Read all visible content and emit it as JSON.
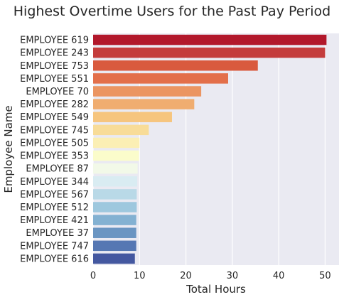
{
  "chart_data": {
    "type": "bar",
    "orientation": "horizontal",
    "title": "Highest Overtime Users for the Past Pay Period",
    "xlabel": "Total Hours",
    "ylabel": "Employee Name",
    "xlim": [
      0,
      53
    ],
    "xticks": [
      0,
      10,
      20,
      30,
      40,
      50
    ],
    "grid": true,
    "categories": [
      "EMPLOYEE 619",
      "EMPLOYEE 243",
      "EMPLOYEE 753",
      "EMPLOYEE 551",
      "EMPLOYEE 70",
      "EMPLOYEE 282",
      "EMPLOYEE 549",
      "EMPLOYEE 745",
      "EMPLOYEE 505",
      "EMPLOYEE 353",
      "EMPLOYEE 87",
      "EMPLOYEE 344",
      "EMPLOYEE 567",
      "EMPLOYEE 512",
      "EMPLOYEE 421",
      "EMPLOYEE 37",
      "EMPLOYEE 747",
      "EMPLOYEE 616"
    ],
    "values": [
      50.3,
      50.0,
      35.5,
      29.1,
      23.3,
      21.8,
      17.0,
      12.0,
      10.0,
      9.9,
      9.6,
      9.5,
      9.4,
      9.4,
      9.3,
      9.3,
      9.3,
      9.0
    ],
    "colors": [
      "#b2182b",
      "#c43c3c",
      "#d95a3e",
      "#e36f4a",
      "#eb9562",
      "#f0ad70",
      "#f6c57e",
      "#f8dc98",
      "#fbefb4",
      "#fbfccb",
      "#f2f9e8",
      "#d9ecf2",
      "#b9d9e7",
      "#9ec8de",
      "#83b1d2",
      "#6a95c2",
      "#5577b3",
      "#4458a0"
    ],
    "background_color": "#eaeaf2"
  }
}
